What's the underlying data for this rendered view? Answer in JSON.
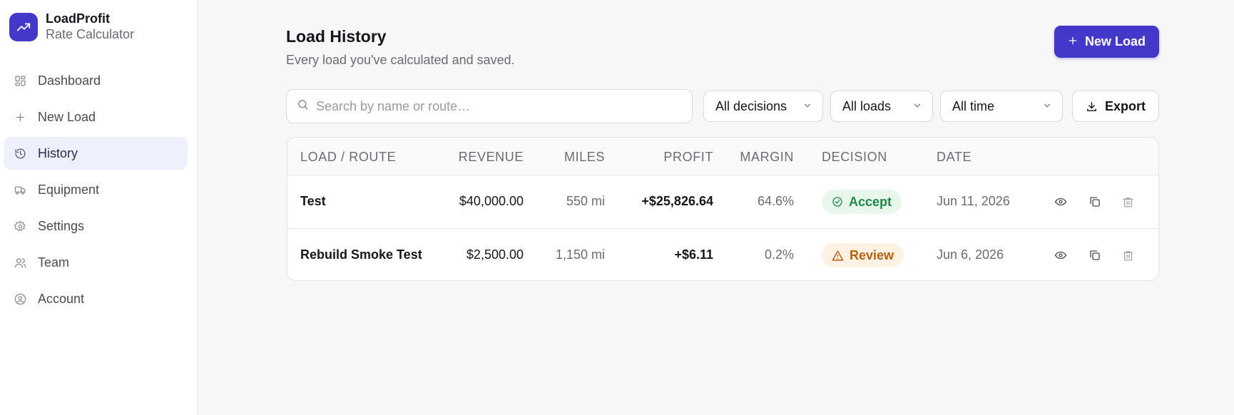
{
  "brand": {
    "name": "LoadProfit",
    "subtitle": "Rate Calculator"
  },
  "nav": {
    "items": [
      {
        "label": "Dashboard",
        "icon": "grid-icon"
      },
      {
        "label": "New Load",
        "icon": "plus-icon"
      },
      {
        "label": "History",
        "icon": "history-icon",
        "active": true
      },
      {
        "label": "Equipment",
        "icon": "truck-icon"
      },
      {
        "label": "Settings",
        "icon": "gear-icon"
      },
      {
        "label": "Team",
        "icon": "users-icon"
      },
      {
        "label": "Account",
        "icon": "user-circle-icon"
      }
    ]
  },
  "header": {
    "title": "Load History",
    "subtitle": "Every load you've calculated and saved.",
    "new_load_label": "New Load"
  },
  "filters": {
    "search_placeholder": "Search by name or route…",
    "search_value": "",
    "decision_selected": "All decisions",
    "loads_selected": "All loads",
    "time_selected": "All time",
    "export_label": "Export"
  },
  "table": {
    "columns": [
      "LOAD / ROUTE",
      "REVENUE",
      "MILES",
      "PROFIT",
      "MARGIN",
      "DECISION",
      "DATE"
    ],
    "rows": [
      {
        "name": "Test",
        "revenue": "$40,000.00",
        "miles": "550 mi",
        "profit": "+$25,826.64",
        "margin": "64.6%",
        "decision": "Accept",
        "date": "Jun 11, 2026"
      },
      {
        "name": "Rebuild Smoke Test",
        "revenue": "$2,500.00",
        "miles": "1,150 mi",
        "profit": "+$6.11",
        "margin": "0.2%",
        "decision": "Review",
        "date": "Jun 6, 2026"
      }
    ]
  },
  "colors": {
    "accent": "#4338ca",
    "accept": "#1f8a48",
    "review": "#b5610f"
  }
}
